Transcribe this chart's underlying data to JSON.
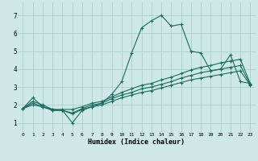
{
  "xlabel": "Humidex (Indice chaleur)",
  "xlim": [
    -0.5,
    23.5
  ],
  "ylim": [
    0.5,
    7.7
  ],
  "xticks": [
    0,
    1,
    2,
    3,
    4,
    5,
    6,
    7,
    8,
    9,
    10,
    11,
    12,
    13,
    14,
    15,
    16,
    17,
    18,
    19,
    20,
    21,
    22,
    23
  ],
  "yticks": [
    1,
    2,
    3,
    4,
    5,
    6,
    7
  ],
  "bg_color": "#cde8e5",
  "grid_color": "#aacfcc",
  "line_color": "#1a6b5e",
  "series": [
    {
      "x": [
        0,
        1,
        2,
        3,
        4,
        5,
        6,
        7,
        8,
        9,
        10,
        11,
        12,
        13,
        14,
        15,
        16,
        17,
        18,
        19,
        20,
        21,
        22,
        23
      ],
      "y": [
        1.8,
        2.4,
        1.9,
        1.7,
        1.7,
        1.0,
        1.7,
        1.9,
        2.1,
        2.6,
        3.3,
        4.9,
        6.3,
        6.7,
        7.0,
        6.4,
        6.5,
        5.0,
        4.9,
        3.9,
        4.0,
        4.8,
        3.3,
        3.2
      ]
    },
    {
      "x": [
        0,
        1,
        2,
        3,
        4,
        5,
        6,
        7,
        8,
        9,
        10,
        11,
        12,
        13,
        14,
        15,
        16,
        17,
        18,
        19,
        20,
        21,
        22,
        23
      ],
      "y": [
        1.8,
        2.2,
        2.0,
        1.75,
        1.75,
        1.75,
        1.9,
        2.1,
        2.2,
        2.45,
        2.7,
        2.9,
        3.1,
        3.2,
        3.4,
        3.55,
        3.75,
        3.95,
        4.1,
        4.2,
        4.35,
        4.45,
        4.55,
        3.2
      ]
    },
    {
      "x": [
        0,
        1,
        2,
        3,
        4,
        5,
        6,
        7,
        8,
        9,
        10,
        11,
        12,
        13,
        14,
        15,
        16,
        17,
        18,
        19,
        20,
        21,
        22,
        23
      ],
      "y": [
        1.8,
        2.1,
        1.9,
        1.7,
        1.7,
        1.55,
        1.8,
        2.0,
        2.1,
        2.35,
        2.55,
        2.7,
        2.9,
        3.0,
        3.15,
        3.3,
        3.5,
        3.65,
        3.8,
        3.9,
        4.0,
        4.1,
        4.2,
        3.15
      ]
    },
    {
      "x": [
        0,
        1,
        2,
        3,
        4,
        5,
        6,
        7,
        8,
        9,
        10,
        11,
        12,
        13,
        14,
        15,
        16,
        17,
        18,
        19,
        20,
        21,
        22,
        23
      ],
      "y": [
        1.8,
        2.0,
        1.9,
        1.75,
        1.7,
        1.5,
        1.75,
        1.9,
        2.0,
        2.2,
        2.4,
        2.55,
        2.7,
        2.8,
        2.95,
        3.1,
        3.25,
        3.4,
        3.5,
        3.6,
        3.7,
        3.8,
        3.9,
        3.1
      ]
    }
  ]
}
